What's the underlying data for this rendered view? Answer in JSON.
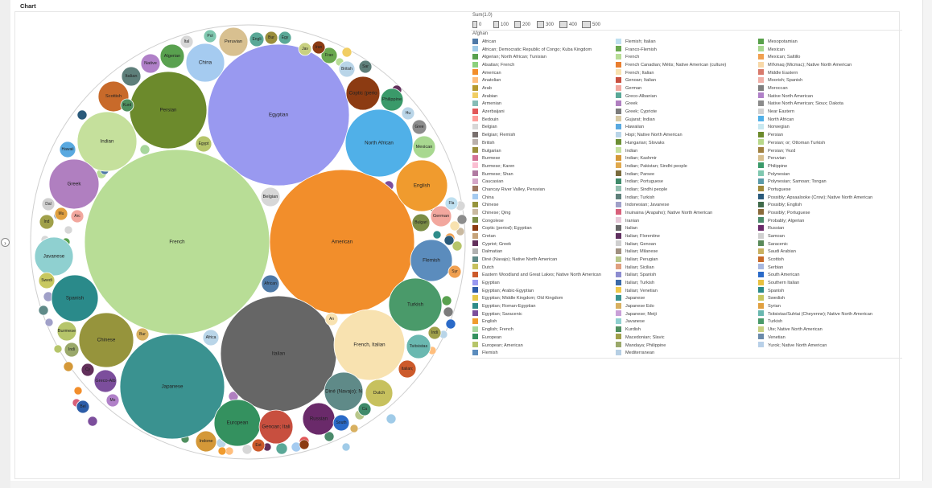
{
  "title": "Chart",
  "toggle_icon": "chevron-right-icon",
  "size_legend": {
    "title": "Sum(1.0)",
    "ticks": [
      "0",
      "100",
      "200",
      "300",
      "400",
      "500"
    ]
  },
  "legend_header": "Afghan",
  "legend": [
    {
      "label": "African",
      "color": "#4e79a7"
    },
    {
      "label": "African; Democratic Republic of Congo; Kuba Kingdom",
      "color": "#a0cbe8"
    },
    {
      "label": "Algerian; North African; Tunisian",
      "color": "#59a14f"
    },
    {
      "label": "Alsatian; French",
      "color": "#8cd17d"
    },
    {
      "label": "American",
      "color": "#f28e2b"
    },
    {
      "label": "Anatolian",
      "color": "#ffbe7d"
    },
    {
      "label": "Arab",
      "color": "#b6992d"
    },
    {
      "label": "Arabian",
      "color": "#f1ce63"
    },
    {
      "label": "Armenian",
      "color": "#86bcb6"
    },
    {
      "label": "Azerbaijani",
      "color": "#e15759"
    },
    {
      "label": "Bedouin",
      "color": "#ff9d9a"
    },
    {
      "label": "Belgian",
      "color": "#d7d7d7"
    },
    {
      "label": "Belgian; Flemish",
      "color": "#79706e"
    },
    {
      "label": "British",
      "color": "#bab0ac"
    },
    {
      "label": "Bulgarian",
      "color": "#9a8e3c"
    },
    {
      "label": "Burmese",
      "color": "#d37295"
    },
    {
      "label": "Burmese; Karen",
      "color": "#fabfd2"
    },
    {
      "label": "Burmese; Shan",
      "color": "#b07aa1"
    },
    {
      "label": "Caucasian",
      "color": "#d4a6c8"
    },
    {
      "label": "Chancay River Valley, Peruvian",
      "color": "#9d7660"
    },
    {
      "label": "China",
      "color": "#a5cbf0"
    },
    {
      "label": "Chinese",
      "color": "#96943c"
    },
    {
      "label": "Chinese; Qing",
      "color": "#c9b9a0"
    },
    {
      "label": "Congolese",
      "color": "#7b8d46"
    },
    {
      "label": "Coptic (period); Egyptian",
      "color": "#8c3b12"
    },
    {
      "label": "Cretan",
      "color": "#c6a37a"
    },
    {
      "label": "Cypriot; Greek",
      "color": "#62305b"
    },
    {
      "label": "Dalmatian",
      "color": "#b1b1b1"
    },
    {
      "label": "Diné (Navajo); Native North American",
      "color": "#5f8a88"
    },
    {
      "label": "Dutch",
      "color": "#c7c15e"
    },
    {
      "label": "Eastern Woodland and Great Lakes; Native North American",
      "color": "#cc5a2b"
    },
    {
      "label": "Egyptian",
      "color": "#9999f0"
    },
    {
      "label": "Egyptian; Arabic-Egyptian",
      "color": "#2d5da8"
    },
    {
      "label": "Egyptian; Middle Kingdom; Old Kingdom",
      "color": "#e6c84a"
    },
    {
      "label": "Egyptian; Roman-Egyptian",
      "color": "#2e8c8a"
    },
    {
      "label": "Egyptian; Saracenic",
      "color": "#7c4e9c"
    },
    {
      "label": "English",
      "color": "#f09b2e"
    },
    {
      "label": "English; French",
      "color": "#a7d69c"
    },
    {
      "label": "European",
      "color": "#34915f"
    },
    {
      "label": "European; American",
      "color": "#b6c56a"
    },
    {
      "label": "Flemish",
      "color": "#5b8cbd"
    },
    {
      "label": "Flemish; Italian",
      "color": "#bfe0f0"
    },
    {
      "label": "Franco-Flemish",
      "color": "#6aa84f"
    },
    {
      "label": "French",
      "color": "#b8dd96"
    },
    {
      "label": "French Canadian; Métis; Native American (culture)",
      "color": "#e97e2f"
    },
    {
      "label": "French; Italian",
      "color": "#f8e2b0"
    },
    {
      "label": "Genoan; Italian",
      "color": "#c84f3f"
    },
    {
      "label": "German",
      "color": "#f2a79e"
    },
    {
      "label": "Greco-Albanian",
      "color": "#5aa897"
    },
    {
      "label": "Greek",
      "color": "#b07fc0"
    },
    {
      "label": "Greek; Cypriote",
      "color": "#7c7c7c"
    },
    {
      "label": "Gujarat; Indian",
      "color": "#d7c9a4"
    },
    {
      "label": "Hawaiian",
      "color": "#59a9e0"
    },
    {
      "label": "Hopi; Native North American",
      "color": "#b9d5e8"
    },
    {
      "label": "Hungarian; Slovaks",
      "color": "#6c8e34"
    },
    {
      "label": "Indian",
      "color": "#c5e09c"
    },
    {
      "label": "Indian; Kashmir",
      "color": "#d49838"
    },
    {
      "label": "Indian; Pakistan; Sindhi people",
      "color": "#e0a94d"
    },
    {
      "label": "Indian; Parsee",
      "color": "#7a6b3c"
    },
    {
      "label": "Indian; Portuguese",
      "color": "#3f8a6a"
    },
    {
      "label": "Indian; Sindhi people",
      "color": "#93bfb0"
    },
    {
      "label": "Indian; Turkish",
      "color": "#5e7f7a"
    },
    {
      "label": "Indonesian; Javanese",
      "color": "#a0a0c8"
    },
    {
      "label": "Inuinaina (Arapaho); Native North American",
      "color": "#d8607a"
    },
    {
      "label": "Iranian",
      "color": "#e6c8d8"
    },
    {
      "label": "Italian",
      "color": "#666666"
    },
    {
      "label": "Italian; Florentine",
      "color": "#603060"
    },
    {
      "label": "Italian; Genoan",
      "color": "#cfcfcf"
    },
    {
      "label": "Italian; Milanese",
      "color": "#a09080"
    },
    {
      "label": "Italian; Perugian",
      "color": "#b8c78a"
    },
    {
      "label": "Italian; Sicilian",
      "color": "#e0a080"
    },
    {
      "label": "Italian; Spanish",
      "color": "#8c8cd0"
    },
    {
      "label": "Italian; Turkish",
      "color": "#3b6aa8"
    },
    {
      "label": "Italian; Venetian",
      "color": "#f0c84a"
    },
    {
      "label": "Japanese",
      "color": "#3a9290"
    },
    {
      "label": "Japanese Edo",
      "color": "#d8b060"
    },
    {
      "label": "Japanese; Meiji",
      "color": "#c9a0d8"
    },
    {
      "label": "Javanese",
      "color": "#8fd0d0"
    },
    {
      "label": "Kurdish",
      "color": "#4f8f5f"
    },
    {
      "label": "Macedonian; Slavic",
      "color": "#a0a04a"
    },
    {
      "label": "Mandaya; Philippine",
      "color": "#9aa86a"
    },
    {
      "label": "Mediterranean",
      "color": "#b6cfe4"
    },
    {
      "label": "Mesopotamian",
      "color": "#58a04a"
    },
    {
      "label": "Mexican",
      "color": "#a8d890"
    },
    {
      "label": "Mexican; Saltillo",
      "color": "#f0a050"
    },
    {
      "label": "Mi'kmaq (Micmac); Native North American",
      "color": "#f8d8a8"
    },
    {
      "label": "Middle Eastern",
      "color": "#d87a6c"
    },
    {
      "label": "Moorish; Spanish",
      "color": "#f0b0a8"
    },
    {
      "label": "Moroccan",
      "color": "#7f7f7f"
    },
    {
      "label": "Native North American",
      "color": "#b080c8"
    },
    {
      "label": "Native North American; Sioux; Dakota",
      "color": "#8c8c8c"
    },
    {
      "label": "Near Eastern",
      "color": "#d0d0d0"
    },
    {
      "label": "North African",
      "color": "#50b0e8"
    },
    {
      "label": "Norwegian",
      "color": "#c8e8f0"
    },
    {
      "label": "Persian",
      "color": "#6c8a2c"
    },
    {
      "label": "Persian; or; Ottoman Turkish",
      "color": "#b8d88a"
    },
    {
      "label": "Persian; Yezd",
      "color": "#a08040"
    },
    {
      "label": "Peruvian",
      "color": "#d8c090"
    },
    {
      "label": "Philippine",
      "color": "#3a9a6a"
    },
    {
      "label": "Polynesian",
      "color": "#80c8b0"
    },
    {
      "label": "Polynesian; Samoan; Tongan",
      "color": "#5a9aa8"
    },
    {
      "label": "Portuguese",
      "color": "#a08a3a"
    },
    {
      "label": "Possibly; Apsaalooke (Crow); Native North American",
      "color": "#2a5a7a"
    },
    {
      "label": "Possibly; English",
      "color": "#406a4a"
    },
    {
      "label": "Possibly; Portuguese",
      "color": "#8a6a3a"
    },
    {
      "label": "Probably; Algerian",
      "color": "#4a8a6a"
    },
    {
      "label": "Russian",
      "color": "#6a2a6a"
    },
    {
      "label": "Samoan",
      "color": "#d0d0d0"
    },
    {
      "label": "Saracenic",
      "color": "#5a8a5a"
    },
    {
      "label": "Saudi Arabian",
      "color": "#c8b060"
    },
    {
      "label": "Scottish",
      "color": "#c86a2a"
    },
    {
      "label": "Serbian",
      "color": "#a8b8e0"
    },
    {
      "label": "South American",
      "color": "#2a6ac8"
    },
    {
      "label": "Southern Italian",
      "color": "#e8c040"
    },
    {
      "label": "Spanish",
      "color": "#2a8a8a"
    },
    {
      "label": "Swedish",
      "color": "#c8c860"
    },
    {
      "label": "Syrian",
      "color": "#e0a040"
    },
    {
      "label": "Tsitsistas/Suhtai (Cheyenne); Native North American",
      "color": "#6ab8b0"
    },
    {
      "label": "Turkish",
      "color": "#4a9a6a"
    },
    {
      "label": "Ute; Native North American",
      "color": "#c8d080"
    },
    {
      "label": "Venetian",
      "color": "#6a8aaa"
    },
    {
      "label": "Yurok; Native North American",
      "color": "#b8d0e8"
    }
  ],
  "chart_data": {
    "type": "bubble",
    "title": "Chart",
    "size_measure": "Sum(1.0)",
    "points": [
      {
        "label": "Egyptian",
        "value": 563,
        "color": "#9999f0"
      },
      {
        "label": "French",
        "value": 1000,
        "color": "#b8dd96"
      },
      {
        "label": "American",
        "value": 591,
        "color": "#f28e2b"
      },
      {
        "label": "Italian",
        "value": 376,
        "color": "#666666"
      },
      {
        "label": "Japanese",
        "value": 316,
        "color": "#3a9290"
      },
      {
        "label": "Persian",
        "value": 170,
        "color": "#6c8a2c"
      },
      {
        "label": "North African",
        "value": 132,
        "color": "#50b0e8"
      },
      {
        "label": "Indian",
        "value": 96,
        "color": "#c5e09c"
      },
      {
        "label": "Chinese",
        "value": 84,
        "color": "#96943c"
      },
      {
        "label": "French, Italian",
        "value": 137,
        "color": "#f8e2b0"
      },
      {
        "label": "Greek",
        "value": 70,
        "color": "#b07fc0"
      },
      {
        "label": "Flemish",
        "value": 40,
        "color": "#5b8cbd"
      },
      {
        "label": "English",
        "value": 76,
        "color": "#f09b2e"
      },
      {
        "label": "Turkish",
        "value": 78,
        "color": "#4a9a6a"
      },
      {
        "label": "Spanish",
        "value": 60,
        "color": "#2a8a8a"
      },
      {
        "label": "Javanese",
        "value": 42,
        "color": "#8fd0d0"
      },
      {
        "label": "European",
        "value": 58,
        "color": "#34915f"
      },
      {
        "label": "Diné (Navajo); N",
        "value": 40,
        "color": "#5f8a88"
      },
      {
        "label": "Russian",
        "value": 35,
        "color": "#6a2a6a"
      },
      {
        "label": "Genoan; Itali",
        "value": 32,
        "color": "#c84f3f"
      },
      {
        "label": "Coptic (perio",
        "value": 25,
        "color": "#8c3b12"
      },
      {
        "label": "Peruvian",
        "value": 25,
        "color": "#d8c090"
      },
      {
        "label": "China",
        "value": 40,
        "color": "#a5cbf0"
      },
      {
        "label": "Scottish",
        "value": 27,
        "color": "#c86a2a"
      },
      {
        "label": "Algerian",
        "value": 16,
        "color": "#59a14f"
      },
      {
        "label": "Dutch",
        "value": 22,
        "color": "#c7c15e"
      },
      {
        "label": "Mexican",
        "value": 18,
        "color": "#a8d890"
      },
      {
        "label": "Philippine",
        "value": 13,
        "color": "#3a9a6a"
      },
      {
        "label": "German",
        "value": 12,
        "color": "#f2a79e"
      },
      {
        "label": "Tsitsistas",
        "value": 15,
        "color": "#6ab8b0"
      },
      {
        "label": "Italian;",
        "value": 11,
        "color": "#cc5a2b"
      },
      {
        "label": "Bulgari",
        "value": 11,
        "color": "#7b8d46"
      },
      {
        "label": "Greco-Alb",
        "value": 14,
        "color": "#7c4e9c"
      },
      {
        "label": "Belgian",
        "value": 10,
        "color": "#d7d7d7"
      },
      {
        "label": "African",
        "value": 10,
        "color": "#4e79a7"
      },
      {
        "label": "Indone",
        "value": 11,
        "color": "#d49838"
      },
      {
        "label": "Burmese",
        "value": 10,
        "color": "#b6c56a"
      },
      {
        "label": "Native",
        "value": 10,
        "color": "#b080c8"
      },
      {
        "label": "Italian",
        "value": 8,
        "color": "#5e7f7a"
      },
      {
        "label": "British",
        "value": 9,
        "color": "#b9d5e8"
      },
      {
        "label": "Egypt",
        "value": 6,
        "color": "#b6c56a"
      },
      {
        "label": "Swedi",
        "value": 7,
        "color": "#c8c860"
      },
      {
        "label": "Hawaii",
        "value": 7,
        "color": "#59a9e0"
      },
      {
        "label": "Africa",
        "value": 7,
        "color": "#b9d5e8"
      },
      {
        "label": "South",
        "value": 7,
        "color": "#2a6ac8"
      },
      {
        "label": "Kurd",
        "value": 7,
        "color": "#4f8f5f"
      },
      {
        "label": "Sar",
        "value": 4,
        "color": "#5e7f7a"
      },
      {
        "label": "Indi",
        "value": 5,
        "color": "#9aa86a"
      },
      {
        "label": "Mo",
        "value": 4,
        "color": "#b080c8"
      },
      {
        "label": "Syr",
        "value": 4,
        "color": "#f0a050"
      },
      {
        "label": "Dal",
        "value": 4,
        "color": "#d0d0d0"
      },
      {
        "label": "Fran",
        "value": 5,
        "color": "#6aa84f"
      },
      {
        "label": "Cy",
        "value": 4,
        "color": "#62305b"
      },
      {
        "label": "Pol",
        "value": 4,
        "color": "#80c8b0"
      },
      {
        "label": "Engli",
        "value": 5,
        "color": "#5aa897"
      },
      {
        "label": "Bur",
        "value": 5,
        "color": "#d8b060"
      },
      {
        "label": "Gree",
        "value": 5,
        "color": "#8c8c8c"
      },
      {
        "label": "Jav",
        "value": 4,
        "color": "#c8d080"
      },
      {
        "label": "Ital",
        "value": 5,
        "color": "#d7d7d7"
      },
      {
        "label": "Ca",
        "value": 4,
        "color": "#3f8a6a"
      },
      {
        "label": "Arc",
        "value": 4,
        "color": "#f2a79e"
      },
      {
        "label": "An",
        "value": 4,
        "color": "#f8e2b0"
      },
      {
        "label": "Indi",
        "value": 4,
        "color": "#a0a04a"
      },
      {
        "label": "Mu",
        "value": 5,
        "color": "#e0a040"
      },
      {
        "label": "Bur",
        "value": 4,
        "color": "#9a8e3c"
      },
      {
        "label": "Egy",
        "value": 4,
        "color": "#5aa897"
      },
      {
        "label": "Iran",
        "value": 4,
        "color": "#8c3b12"
      },
      {
        "label": "Fla",
        "value": 4,
        "color": "#bfe0f0"
      },
      {
        "label": "Hu",
        "value": 4,
        "color": "#b9d5e8"
      },
      {
        "label": "Bel",
        "value": 4,
        "color": "#2d5da8"
      },
      {
        "label": "Ind",
        "value": 4,
        "color": "#a0a04a"
      },
      {
        "label": "Est",
        "value": 5,
        "color": "#cc5a2b"
      },
      {
        "label": "Indi",
        "value": 4,
        "color": "#b8c78a"
      }
    ]
  }
}
